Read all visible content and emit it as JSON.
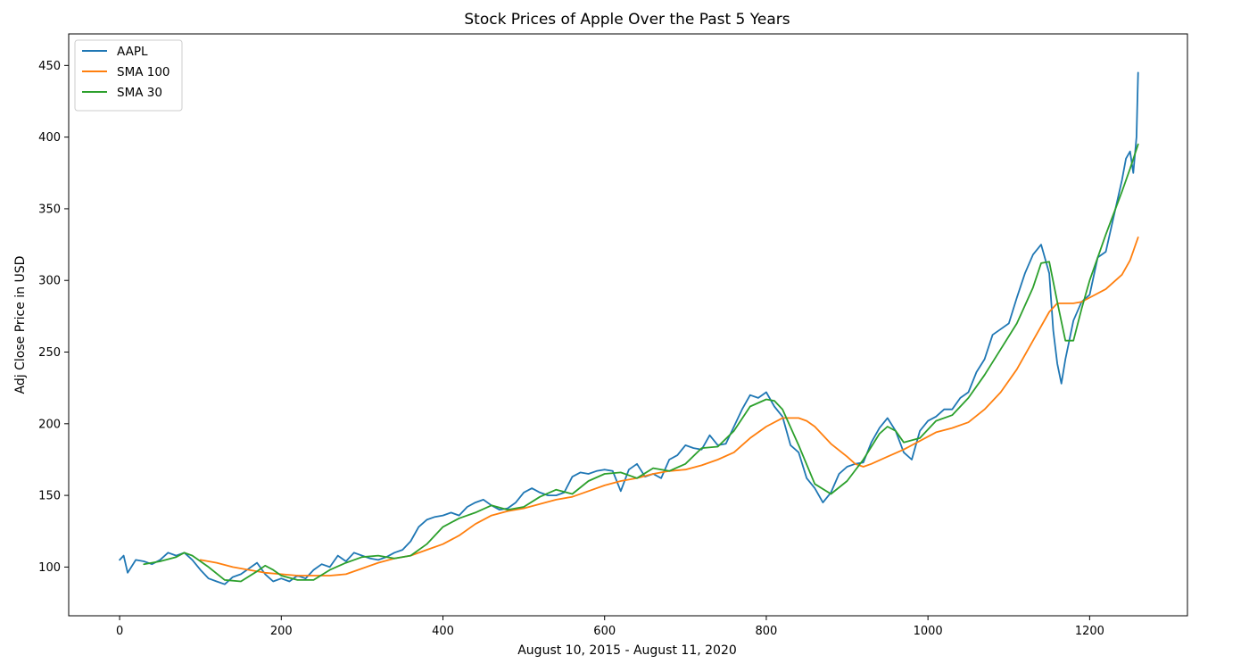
{
  "chart_data": {
    "type": "line",
    "title": "Stock Prices of Apple Over the Past 5 Years",
    "xlabel": "August 10, 2015 - August 11, 2020",
    "ylabel": "Adj Close Price in USD",
    "xlim": [
      -63,
      1321
    ],
    "ylim": [
      66,
      472
    ],
    "xticks": [
      0,
      200,
      400,
      600,
      800,
      1000,
      1200
    ],
    "yticks": [
      100,
      150,
      200,
      250,
      300,
      350,
      400,
      450
    ],
    "grid": false,
    "legend_position": "top-left",
    "series": [
      {
        "name": "AAPL",
        "color": "#1f77b4",
        "x": [
          0,
          5,
          10,
          20,
          30,
          40,
          50,
          60,
          70,
          80,
          90,
          100,
          110,
          120,
          130,
          140,
          150,
          160,
          170,
          180,
          190,
          200,
          210,
          220,
          230,
          240,
          250,
          260,
          270,
          280,
          290,
          300,
          310,
          320,
          330,
          340,
          350,
          360,
          370,
          380,
          390,
          400,
          410,
          420,
          430,
          440,
          450,
          460,
          470,
          480,
          490,
          500,
          510,
          520,
          530,
          540,
          550,
          560,
          570,
          580,
          590,
          600,
          610,
          620,
          630,
          640,
          650,
          660,
          670,
          680,
          690,
          700,
          710,
          720,
          730,
          740,
          750,
          760,
          770,
          780,
          790,
          800,
          810,
          820,
          830,
          840,
          850,
          860,
          870,
          880,
          890,
          900,
          910,
          920,
          930,
          940,
          950,
          960,
          970,
          980,
          990,
          1000,
          1010,
          1020,
          1030,
          1040,
          1050,
          1060,
          1070,
          1080,
          1090,
          1100,
          1110,
          1120,
          1130,
          1140,
          1150,
          1155,
          1160,
          1165,
          1170,
          1180,
          1190,
          1200,
          1210,
          1220,
          1230,
          1240,
          1245,
          1250,
          1254,
          1258,
          1260
        ],
        "values": [
          105,
          108,
          96,
          105,
          104,
          102,
          105,
          110,
          108,
          110,
          105,
          98,
          92,
          90,
          88,
          93,
          95,
          99,
          103,
          95,
          90,
          92,
          90,
          94,
          92,
          98,
          102,
          100,
          108,
          104,
          110,
          108,
          106,
          105,
          107,
          110,
          112,
          118,
          128,
          133,
          135,
          136,
          138,
          136,
          142,
          145,
          147,
          143,
          140,
          141,
          145,
          152,
          155,
          152,
          150,
          150,
          152,
          163,
          166,
          165,
          167,
          168,
          167,
          153,
          168,
          172,
          163,
          165,
          162,
          175,
          178,
          185,
          183,
          182,
          192,
          185,
          186,
          198,
          210,
          220,
          218,
          222,
          212,
          205,
          185,
          180,
          162,
          155,
          145,
          152,
          165,
          170,
          172,
          173,
          187,
          197,
          204,
          195,
          180,
          175,
          195,
          202,
          205,
          210,
          210,
          218,
          222,
          236,
          245,
          262,
          266,
          270,
          288,
          305,
          318,
          325,
          305,
          265,
          242,
          228,
          245,
          272,
          285,
          290,
          316,
          320,
          345,
          370,
          385,
          390,
          375,
          400,
          445
        ]
      },
      {
        "name": "SMA 100",
        "color": "#ff7f0e",
        "x": [
          100,
          120,
          140,
          160,
          180,
          200,
          220,
          240,
          260,
          280,
          300,
          320,
          340,
          360,
          380,
          400,
          420,
          440,
          460,
          480,
          500,
          520,
          540,
          560,
          580,
          600,
          620,
          640,
          660,
          680,
          700,
          720,
          740,
          760,
          780,
          800,
          820,
          840,
          850,
          860,
          880,
          900,
          910,
          920,
          930,
          950,
          970,
          990,
          1010,
          1030,
          1050,
          1070,
          1090,
          1110,
          1130,
          1150,
          1160,
          1170,
          1180,
          1190,
          1200,
          1220,
          1240,
          1250,
          1260
        ],
        "values": [
          105,
          103,
          100,
          98,
          96,
          95,
          94,
          94,
          94,
          95,
          99,
          103,
          106,
          108,
          112,
          116,
          122,
          130,
          136,
          139,
          141,
          144,
          147,
          149,
          153,
          157,
          160,
          162,
          165,
          167,
          168,
          171,
          175,
          180,
          190,
          198,
          204,
          204,
          202,
          198,
          186,
          177,
          172,
          170,
          172,
          177,
          182,
          188,
          194,
          197,
          201,
          210,
          222,
          238,
          258,
          278,
          284,
          284,
          284,
          285,
          288,
          294,
          304,
          314,
          330
        ]
      },
      {
        "name": "SMA 30",
        "color": "#2ca02c",
        "x": [
          30,
          50,
          70,
          80,
          90,
          110,
          130,
          150,
          170,
          180,
          190,
          200,
          220,
          240,
          260,
          280,
          300,
          320,
          340,
          360,
          380,
          400,
          420,
          440,
          460,
          480,
          500,
          520,
          540,
          560,
          580,
          600,
          620,
          640,
          660,
          680,
          700,
          720,
          740,
          760,
          780,
          800,
          810,
          820,
          840,
          860,
          880,
          900,
          920,
          940,
          950,
          960,
          970,
          990,
          1010,
          1030,
          1050,
          1070,
          1090,
          1110,
          1130,
          1140,
          1150,
          1160,
          1170,
          1180,
          1190,
          1200,
          1220,
          1240,
          1250,
          1260
        ],
        "values": [
          102,
          104,
          107,
          110,
          108,
          100,
          91,
          90,
          97,
          101,
          98,
          94,
          91,
          91,
          98,
          103,
          107,
          108,
          106,
          108,
          116,
          128,
          134,
          138,
          143,
          140,
          142,
          149,
          154,
          151,
          160,
          165,
          166,
          162,
          169,
          167,
          172,
          183,
          184,
          195,
          212,
          217,
          216,
          210,
          185,
          158,
          151,
          160,
          175,
          193,
          198,
          195,
          187,
          190,
          202,
          206,
          218,
          234,
          252,
          270,
          295,
          312,
          313,
          285,
          258,
          258,
          280,
          300,
          332,
          362,
          378,
          395
        ]
      }
    ]
  }
}
